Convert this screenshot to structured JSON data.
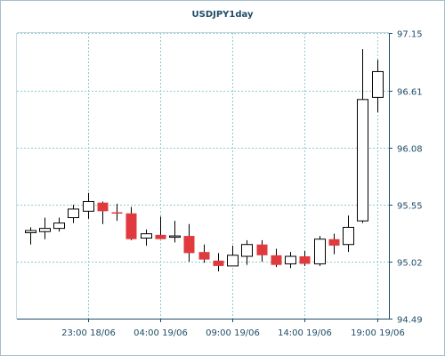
{
  "chart_data": {
    "type": "candlestick",
    "title": "USDJPY1day",
    "colors": {
      "up_fill": "#ffffff",
      "down_fill": "#e0393e",
      "outline": "#000000",
      "background": "#ffffff",
      "plot_background": "#ffffff",
      "grid": "#8ecbd1",
      "axis": "#1e4d66",
      "text": "#1e4d66"
    },
    "grid": true,
    "ylim": [
      94.49,
      97.15
    ],
    "y_ticks": [
      "97.15",
      "96.61",
      "96.08",
      "95.55",
      "95.02",
      "94.49"
    ],
    "x_ticks": [
      "23:00 18/06",
      "04:00 19/06",
      "09:00 19/06",
      "14:00 19/06",
      "19:00 19/06"
    ],
    "candles": [
      {
        "open": 95.29,
        "high": 95.34,
        "low": 95.18,
        "close": 95.31,
        "dir": "up"
      },
      {
        "open": 95.3,
        "high": 95.43,
        "low": 95.23,
        "close": 95.33,
        "dir": "up"
      },
      {
        "open": 95.33,
        "high": 95.43,
        "low": 95.3,
        "close": 95.38,
        "dir": "up"
      },
      {
        "open": 95.43,
        "high": 95.55,
        "low": 95.38,
        "close": 95.51,
        "dir": "up"
      },
      {
        "open": 95.49,
        "high": 95.66,
        "low": 95.42,
        "close": 95.58,
        "dir": "up"
      },
      {
        "open": 95.57,
        "high": 95.58,
        "low": 95.37,
        "close": 95.49,
        "dir": "down"
      },
      {
        "open": 95.48,
        "high": 95.56,
        "low": 95.4,
        "close": 95.47,
        "dir": "down"
      },
      {
        "open": 95.47,
        "high": 95.53,
        "low": 95.22,
        "close": 95.23,
        "dir": "down"
      },
      {
        "open": 95.24,
        "high": 95.32,
        "low": 95.17,
        "close": 95.28,
        "dir": "up"
      },
      {
        "open": 95.27,
        "high": 95.44,
        "low": 95.23,
        "close": 95.23,
        "dir": "down"
      },
      {
        "open": 95.25,
        "high": 95.4,
        "low": 95.2,
        "close": 95.26,
        "dir": "up"
      },
      {
        "open": 95.26,
        "high": 95.37,
        "low": 95.02,
        "close": 95.1,
        "dir": "down"
      },
      {
        "open": 95.11,
        "high": 95.18,
        "low": 95.01,
        "close": 95.04,
        "dir": "down"
      },
      {
        "open": 95.03,
        "high": 95.1,
        "low": 94.93,
        "close": 94.98,
        "dir": "down"
      },
      {
        "open": 94.98,
        "high": 95.17,
        "low": 94.98,
        "close": 95.08,
        "dir": "up"
      },
      {
        "open": 95.07,
        "high": 95.22,
        "low": 94.99,
        "close": 95.18,
        "dir": "up"
      },
      {
        "open": 95.18,
        "high": 95.22,
        "low": 95.02,
        "close": 95.08,
        "dir": "down"
      },
      {
        "open": 95.08,
        "high": 95.14,
        "low": 94.97,
        "close": 94.99,
        "dir": "down"
      },
      {
        "open": 95.0,
        "high": 95.11,
        "low": 94.96,
        "close": 95.07,
        "dir": "up"
      },
      {
        "open": 95.07,
        "high": 95.12,
        "low": 94.98,
        "close": 95.0,
        "dir": "down"
      },
      {
        "open": 95.0,
        "high": 95.26,
        "low": 94.98,
        "close": 95.23,
        "dir": "up"
      },
      {
        "open": 95.23,
        "high": 95.28,
        "low": 95.09,
        "close": 95.17,
        "dir": "down"
      },
      {
        "open": 95.18,
        "high": 95.45,
        "low": 95.11,
        "close": 95.34,
        "dir": "up"
      },
      {
        "open": 95.4,
        "high": 97.0,
        "low": 95.38,
        "close": 96.53,
        "dir": "up"
      },
      {
        "open": 96.55,
        "high": 96.9,
        "low": 96.41,
        "close": 96.79,
        "dir": "up"
      }
    ]
  }
}
